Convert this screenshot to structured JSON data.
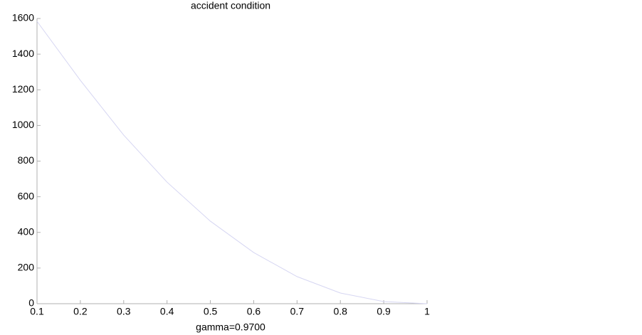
{
  "chart_data": {
    "type": "line",
    "title": "accident condition",
    "x_label": "gamma=0.9700",
    "x": [
      0.1,
      0.2,
      0.3,
      0.4,
      0.5,
      0.6,
      0.7,
      0.8,
      0.9,
      1
    ],
    "series": [
      {
        "color": "#d6d6f2",
        "values": [
          1584,
          1253,
          946,
          682,
          463,
          287,
          152,
          60,
          12,
          0
        ]
      }
    ],
    "xlim": [
      0.1,
      1
    ],
    "xticks": [
      0.1,
      0.2,
      0.3,
      0.4,
      0.5,
      0.6,
      0.7,
      0.8,
      0.9,
      1
    ],
    "ylim": [
      0,
      1600
    ],
    "yticks": [
      0,
      200,
      400,
      600,
      800,
      1000,
      1200,
      1400,
      1600
    ],
    "grid": false
  }
}
